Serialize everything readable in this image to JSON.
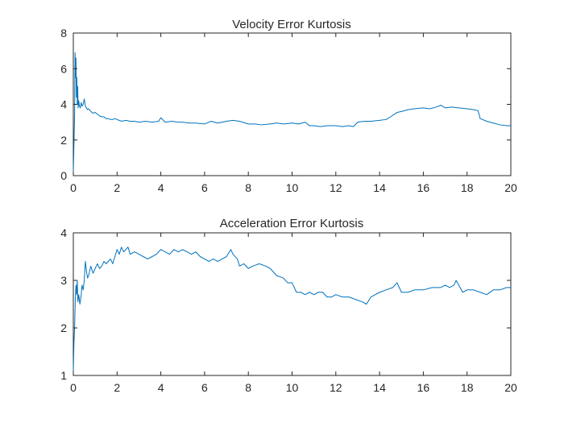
{
  "chart_data": [
    {
      "type": "line",
      "title": "Velocity Error Kurtosis",
      "xlabel": "",
      "ylabel": "",
      "xlim": [
        0,
        20
      ],
      "ylim": [
        0,
        8
      ],
      "xticks": [
        0,
        2,
        4,
        6,
        8,
        10,
        12,
        14,
        16,
        18,
        20
      ],
      "yticks": [
        0,
        2,
        4,
        6,
        8
      ],
      "grid": false,
      "color": "#0072bd",
      "series": [
        {
          "x": [
            0,
            0.03,
            0.06,
            0.08,
            0.1,
            0.12,
            0.14,
            0.16,
            0.18,
            0.2,
            0.22,
            0.25,
            0.28,
            0.32,
            0.36,
            0.4,
            0.45,
            0.5,
            0.55,
            0.6,
            0.65,
            0.7,
            0.8,
            0.9,
            1.0,
            1.1,
            1.2,
            1.3,
            1.4,
            1.5,
            1.6,
            1.7,
            1.8,
            1.9,
            2.0,
            2.2,
            2.4,
            2.6,
            2.8,
            3.0,
            3.3,
            3.6,
            3.9,
            4.0,
            4.2,
            4.5,
            4.8,
            5.0,
            5.3,
            5.6,
            6.0,
            6.3,
            6.6,
            7.0,
            7.3,
            7.6,
            8.0,
            8.3,
            8.6,
            9.0,
            9.3,
            9.6,
            10.0,
            10.3,
            10.6,
            10.8,
            11.0,
            11.3,
            11.6,
            12.0,
            12.3,
            12.6,
            12.8,
            13.0,
            13.3,
            13.6,
            14.0,
            14.3,
            14.5,
            14.8,
            15.0,
            15.3,
            15.6,
            16.0,
            16.3,
            16.6,
            16.8,
            17.0,
            17.3,
            17.6,
            18.0,
            18.3,
            18.5,
            18.6,
            18.9,
            19.2,
            19.5,
            19.8,
            20.0
          ],
          "values": [
            0.2,
            1.8,
            3.5,
            6.9,
            5.5,
            6.6,
            4.4,
            5.5,
            4.0,
            5.0,
            3.8,
            4.2,
            3.9,
            3.8,
            4.1,
            3.9,
            4.0,
            4.3,
            3.9,
            3.8,
            3.7,
            3.75,
            3.6,
            3.5,
            3.55,
            3.45,
            3.35,
            3.3,
            3.3,
            3.2,
            3.2,
            3.15,
            3.15,
            3.2,
            3.15,
            3.05,
            3.1,
            3.05,
            3.05,
            3.0,
            3.05,
            3.0,
            3.05,
            3.25,
            3.0,
            3.05,
            3.0,
            3.0,
            2.95,
            2.95,
            2.9,
            3.05,
            2.95,
            3.05,
            3.1,
            3.05,
            2.9,
            2.9,
            2.85,
            2.9,
            2.95,
            2.9,
            2.95,
            2.9,
            3.0,
            2.8,
            2.8,
            2.75,
            2.8,
            2.8,
            2.75,
            2.8,
            2.75,
            3.0,
            3.05,
            3.05,
            3.1,
            3.15,
            3.3,
            3.55,
            3.6,
            3.7,
            3.75,
            3.8,
            3.75,
            3.85,
            3.95,
            3.8,
            3.85,
            3.8,
            3.75,
            3.7,
            3.65,
            3.2,
            3.05,
            2.95,
            2.85,
            2.8,
            2.8
          ]
        }
      ]
    },
    {
      "type": "line",
      "title": "Acceleration Error Kurtosis",
      "xlabel": "",
      "ylabel": "",
      "xlim": [
        0,
        20
      ],
      "ylim": [
        1,
        4
      ],
      "xticks": [
        0,
        2,
        4,
        6,
        8,
        10,
        12,
        14,
        16,
        18,
        20
      ],
      "yticks": [
        1,
        2,
        3,
        4
      ],
      "grid": false,
      "color": "#0072bd",
      "series": [
        {
          "x": [
            0,
            0.03,
            0.06,
            0.09,
            0.12,
            0.15,
            0.18,
            0.21,
            0.25,
            0.3,
            0.35,
            0.4,
            0.45,
            0.5,
            0.55,
            0.6,
            0.65,
            0.7,
            0.8,
            0.9,
            1.0,
            1.1,
            1.2,
            1.3,
            1.4,
            1.5,
            1.6,
            1.7,
            1.8,
            1.9,
            2.0,
            2.1,
            2.2,
            2.3,
            2.4,
            2.5,
            2.6,
            2.8,
            3.0,
            3.2,
            3.4,
            3.6,
            3.8,
            4.0,
            4.2,
            4.4,
            4.6,
            4.8,
            5.0,
            5.2,
            5.4,
            5.6,
            5.8,
            6.0,
            6.2,
            6.4,
            6.6,
            6.8,
            7.0,
            7.2,
            7.3,
            7.5,
            7.6,
            7.8,
            8.0,
            8.2,
            8.5,
            8.8,
            9.0,
            9.3,
            9.6,
            9.8,
            10.0,
            10.2,
            10.4,
            10.6,
            10.8,
            11.0,
            11.2,
            11.4,
            11.6,
            11.8,
            12.0,
            12.3,
            12.6,
            12.9,
            13.2,
            13.4,
            13.6,
            13.8,
            14.0,
            14.3,
            14.6,
            14.8,
            15.0,
            15.3,
            15.6,
            16.0,
            16.4,
            16.8,
            17.0,
            17.2,
            17.4,
            17.5,
            17.8,
            18.0,
            18.3,
            18.6,
            18.9,
            19.2,
            19.5,
            19.8,
            20.0
          ],
          "values": [
            1.1,
            1.7,
            2.0,
            2.6,
            2.9,
            2.7,
            3.0,
            2.55,
            2.7,
            2.5,
            2.65,
            2.9,
            2.8,
            3.0,
            3.4,
            3.2,
            3.05,
            3.1,
            3.3,
            3.15,
            3.25,
            3.35,
            3.25,
            3.3,
            3.4,
            3.35,
            3.4,
            3.45,
            3.35,
            3.5,
            3.65,
            3.55,
            3.7,
            3.6,
            3.65,
            3.7,
            3.55,
            3.6,
            3.55,
            3.5,
            3.45,
            3.5,
            3.55,
            3.65,
            3.6,
            3.55,
            3.65,
            3.6,
            3.65,
            3.6,
            3.55,
            3.6,
            3.5,
            3.45,
            3.4,
            3.45,
            3.4,
            3.45,
            3.5,
            3.65,
            3.55,
            3.45,
            3.3,
            3.35,
            3.25,
            3.3,
            3.35,
            3.3,
            3.25,
            3.1,
            3.05,
            2.95,
            2.95,
            2.75,
            2.75,
            2.7,
            2.75,
            2.7,
            2.75,
            2.75,
            2.65,
            2.65,
            2.7,
            2.65,
            2.65,
            2.6,
            2.55,
            2.5,
            2.65,
            2.7,
            2.75,
            2.8,
            2.85,
            2.95,
            2.75,
            2.75,
            2.8,
            2.8,
            2.85,
            2.85,
            2.9,
            2.85,
            2.9,
            3.0,
            2.75,
            2.8,
            2.8,
            2.75,
            2.7,
            2.8,
            2.8,
            2.85,
            2.85
          ]
        }
      ]
    }
  ]
}
